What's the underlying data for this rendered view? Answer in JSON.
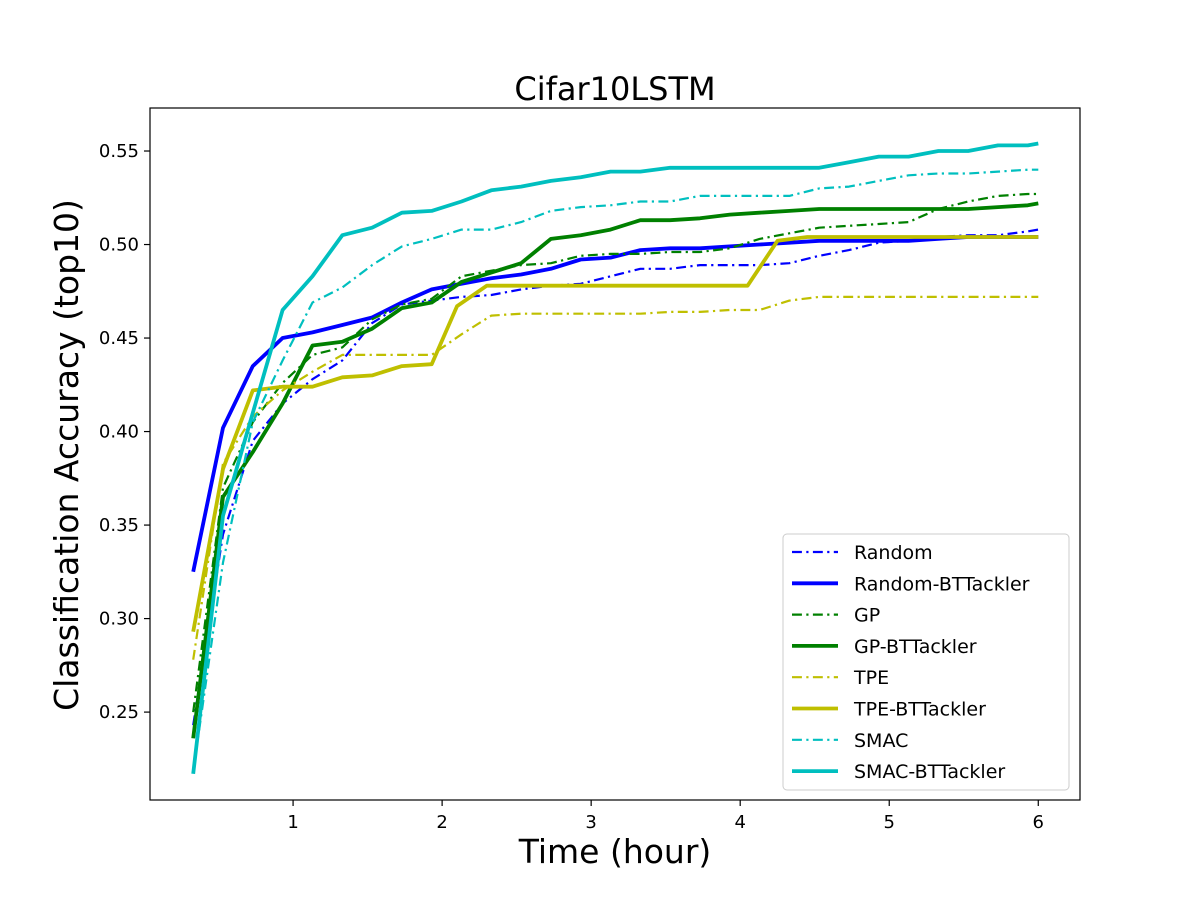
{
  "chart_data": {
    "type": "line",
    "title": "Cifar10LSTM",
    "xlabel": "Time (hour)",
    "ylabel": "Classification Accuracy  (top10)",
    "xlim": [
      0.04,
      6.28
    ],
    "ylim": [
      0.203,
      0.573
    ],
    "xticks": [
      1,
      2,
      3,
      4,
      5,
      6
    ],
    "yticks": [
      0.25,
      0.3,
      0.35,
      0.4,
      0.45,
      0.5,
      0.55
    ],
    "ytick_labels": [
      "0.25",
      "0.30",
      "0.35",
      "0.40",
      "0.45",
      "0.50",
      "0.55"
    ],
    "grid": false,
    "legend_position": "lower-right",
    "series": [
      {
        "name": "Random",
        "color": "#0000ff",
        "style": "dashdot",
        "width": 2.2,
        "x": [
          0.33,
          0.53,
          0.73,
          0.93,
          1.13,
          1.33,
          1.53,
          1.73,
          1.93,
          2.13,
          2.33,
          2.53,
          2.73,
          2.93,
          3.13,
          3.33,
          3.53,
          3.73,
          3.93,
          4.13,
          4.33,
          4.53,
          4.73,
          4.93,
          5.13,
          5.33,
          5.53,
          5.73,
          5.93,
          6.0
        ],
        "y": [
          0.243,
          0.345,
          0.395,
          0.415,
          0.428,
          0.438,
          0.458,
          0.468,
          0.47,
          0.472,
          0.473,
          0.476,
          0.478,
          0.479,
          0.483,
          0.487,
          0.487,
          0.489,
          0.489,
          0.489,
          0.49,
          0.494,
          0.497,
          0.501,
          0.502,
          0.504,
          0.505,
          0.505,
          0.507,
          0.508
        ]
      },
      {
        "name": "Random-BTTackler",
        "color": "#0000ff",
        "style": "solid",
        "width": 3.8,
        "x": [
          0.33,
          0.53,
          0.73,
          0.93,
          1.13,
          1.33,
          1.53,
          1.73,
          1.93,
          2.13,
          2.33,
          2.53,
          2.73,
          2.93,
          3.13,
          3.33,
          3.53,
          3.73,
          3.93,
          4.13,
          4.33,
          4.53,
          4.73,
          4.93,
          5.13,
          5.33,
          5.53,
          5.73,
          5.93,
          6.0
        ],
        "y": [
          0.325,
          0.402,
          0.435,
          0.45,
          0.453,
          0.457,
          0.461,
          0.469,
          0.476,
          0.479,
          0.482,
          0.484,
          0.487,
          0.492,
          0.493,
          0.497,
          0.498,
          0.498,
          0.499,
          0.5,
          0.501,
          0.502,
          0.502,
          0.502,
          0.502,
          0.503,
          0.504,
          0.504,
          0.504,
          0.504
        ]
      },
      {
        "name": "GP",
        "color": "#008000",
        "style": "dashdot",
        "width": 2.2,
        "x": [
          0.33,
          0.53,
          0.73,
          0.93,
          1.13,
          1.33,
          1.53,
          1.73,
          1.93,
          2.13,
          2.33,
          2.53,
          2.73,
          2.93,
          3.13,
          3.33,
          3.53,
          3.73,
          3.93,
          4.13,
          4.33,
          4.53,
          4.73,
          4.93,
          5.13,
          5.33,
          5.53,
          5.73,
          5.93,
          6.0
        ],
        "y": [
          0.25,
          0.37,
          0.405,
          0.426,
          0.441,
          0.445,
          0.46,
          0.468,
          0.471,
          0.483,
          0.486,
          0.489,
          0.49,
          0.494,
          0.495,
          0.495,
          0.496,
          0.496,
          0.498,
          0.503,
          0.506,
          0.509,
          0.51,
          0.511,
          0.512,
          0.519,
          0.523,
          0.526,
          0.527,
          0.527
        ]
      },
      {
        "name": "GP-BTTackler",
        "color": "#008000",
        "style": "solid",
        "width": 3.8,
        "x": [
          0.33,
          0.53,
          0.73,
          0.93,
          1.13,
          1.33,
          1.53,
          1.73,
          1.93,
          2.13,
          2.33,
          2.53,
          2.73,
          2.93,
          3.13,
          3.33,
          3.53,
          3.73,
          3.93,
          4.13,
          4.33,
          4.53,
          4.73,
          4.93,
          5.13,
          5.33,
          5.53,
          5.73,
          5.93,
          6.0
        ],
        "y": [
          0.236,
          0.365,
          0.389,
          0.415,
          0.446,
          0.448,
          0.455,
          0.466,
          0.469,
          0.48,
          0.485,
          0.49,
          0.503,
          0.505,
          0.508,
          0.513,
          0.513,
          0.514,
          0.516,
          0.517,
          0.518,
          0.519,
          0.519,
          0.519,
          0.519,
          0.519,
          0.519,
          0.52,
          0.521,
          0.522
        ]
      },
      {
        "name": "TPE",
        "color": "#bfbf00",
        "style": "dashdot",
        "width": 2.2,
        "x": [
          0.33,
          0.53,
          0.73,
          0.93,
          1.13,
          1.33,
          1.53,
          1.73,
          1.93,
          2.13,
          2.33,
          2.53,
          2.73,
          2.93,
          3.13,
          3.33,
          3.53,
          3.73,
          3.93,
          4.13,
          4.33,
          4.53,
          4.73,
          4.93,
          5.13,
          5.33,
          5.53,
          5.73,
          5.93,
          6.0
        ],
        "y": [
          0.278,
          0.383,
          0.408,
          0.422,
          0.432,
          0.441,
          0.441,
          0.441,
          0.441,
          0.452,
          0.462,
          0.463,
          0.463,
          0.463,
          0.463,
          0.463,
          0.464,
          0.464,
          0.465,
          0.465,
          0.47,
          0.472,
          0.472,
          0.472,
          0.472,
          0.472,
          0.472,
          0.472,
          0.472,
          0.472
        ]
      },
      {
        "name": "TPE-BTTackler",
        "color": "#bfbf00",
        "style": "solid",
        "width": 3.8,
        "x": [
          0.33,
          0.53,
          0.73,
          0.93,
          1.13,
          1.33,
          1.53,
          1.73,
          1.93,
          2.1,
          2.3,
          2.5,
          2.7,
          2.9,
          3.1,
          3.3,
          3.5,
          3.7,
          3.9,
          4.05,
          4.25,
          4.45,
          4.65,
          4.85,
          5.05,
          5.25,
          5.45,
          5.65,
          5.85,
          6.0
        ],
        "y": [
          0.293,
          0.38,
          0.422,
          0.424,
          0.424,
          0.429,
          0.43,
          0.435,
          0.436,
          0.467,
          0.478,
          0.478,
          0.478,
          0.478,
          0.478,
          0.478,
          0.478,
          0.478,
          0.478,
          0.478,
          0.502,
          0.504,
          0.504,
          0.504,
          0.504,
          0.504,
          0.504,
          0.504,
          0.504,
          0.504
        ]
      },
      {
        "name": "SMAC",
        "color": "#00bfbf",
        "style": "dashdot",
        "width": 2.2,
        "x": [
          0.33,
          0.53,
          0.73,
          0.93,
          1.13,
          1.33,
          1.53,
          1.73,
          1.93,
          2.13,
          2.33,
          2.53,
          2.73,
          2.93,
          3.13,
          3.33,
          3.53,
          3.73,
          3.93,
          4.13,
          4.33,
          4.53,
          4.73,
          4.93,
          5.13,
          5.33,
          5.53,
          5.73,
          5.93,
          6.0
        ],
        "y": [
          0.218,
          0.33,
          0.405,
          0.438,
          0.469,
          0.477,
          0.489,
          0.499,
          0.503,
          0.508,
          0.508,
          0.512,
          0.518,
          0.52,
          0.521,
          0.523,
          0.523,
          0.526,
          0.526,
          0.526,
          0.526,
          0.53,
          0.531,
          0.534,
          0.537,
          0.538,
          0.538,
          0.539,
          0.54,
          0.54
        ]
      },
      {
        "name": "SMAC-BTTackler",
        "color": "#00bfbf",
        "style": "solid",
        "width": 3.8,
        "x": [
          0.33,
          0.53,
          0.73,
          0.93,
          1.13,
          1.33,
          1.53,
          1.73,
          1.93,
          2.13,
          2.33,
          2.53,
          2.73,
          2.93,
          3.13,
          3.33,
          3.53,
          3.73,
          3.93,
          4.13,
          4.33,
          4.53,
          4.73,
          4.93,
          5.13,
          5.33,
          5.53,
          5.73,
          5.93,
          6.0
        ],
        "y": [
          0.217,
          0.355,
          0.41,
          0.465,
          0.483,
          0.505,
          0.509,
          0.517,
          0.518,
          0.523,
          0.529,
          0.531,
          0.534,
          0.536,
          0.539,
          0.539,
          0.541,
          0.541,
          0.541,
          0.541,
          0.541,
          0.541,
          0.544,
          0.547,
          0.547,
          0.55,
          0.55,
          0.553,
          0.553,
          0.554
        ]
      }
    ]
  }
}
